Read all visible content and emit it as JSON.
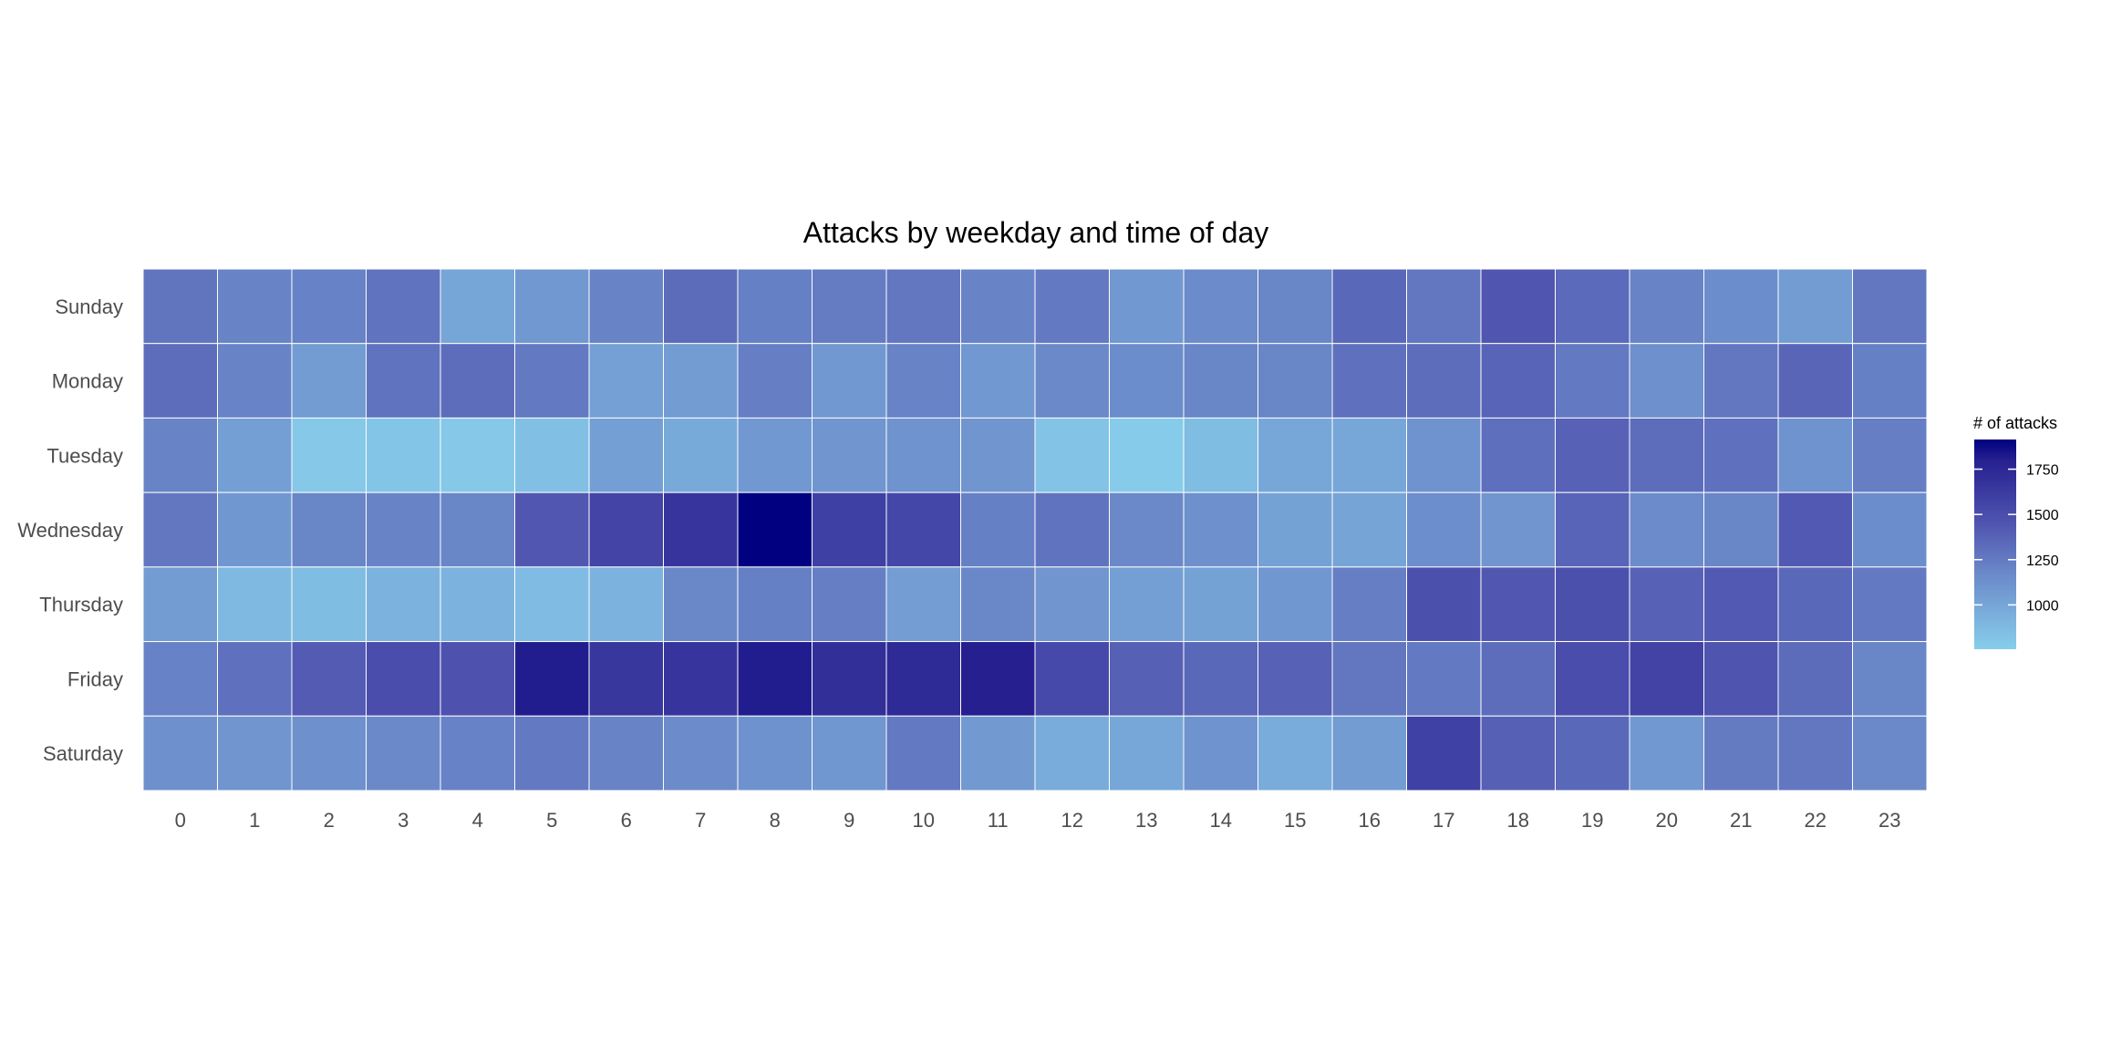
{
  "chart_data": {
    "type": "heatmap",
    "title": "Attacks by weekday and time of day",
    "xlabel": "",
    "ylabel": "",
    "x": [
      "0",
      "1",
      "2",
      "3",
      "4",
      "5",
      "6",
      "7",
      "8",
      "9",
      "10",
      "11",
      "12",
      "13",
      "14",
      "15",
      "16",
      "17",
      "18",
      "19",
      "20",
      "21",
      "22",
      "23"
    ],
    "y": [
      "Sunday",
      "Monday",
      "Tuesday",
      "Wednesday",
      "Thursday",
      "Friday",
      "Saturday"
    ],
    "values": [
      [
        1280,
        1200,
        1210,
        1290,
        1000,
        1080,
        1200,
        1330,
        1220,
        1240,
        1270,
        1200,
        1260,
        1080,
        1160,
        1190,
        1350,
        1270,
        1450,
        1340,
        1200,
        1150,
        1060,
        1270
      ],
      [
        1320,
        1200,
        1060,
        1290,
        1320,
        1260,
        1030,
        1060,
        1230,
        1080,
        1200,
        1080,
        1170,
        1150,
        1190,
        1190,
        1300,
        1320,
        1370,
        1260,
        1130,
        1270,
        1360,
        1220
      ],
      [
        1200,
        1040,
        790,
        810,
        790,
        840,
        1040,
        970,
        1080,
        1100,
        1110,
        1100,
        820,
        770,
        860,
        990,
        990,
        1110,
        1310,
        1380,
        1320,
        1300,
        1110,
        1230
      ],
      [
        1270,
        1090,
        1190,
        1200,
        1190,
        1440,
        1560,
        1660,
        1914,
        1590,
        1540,
        1220,
        1290,
        1170,
        1130,
        1020,
        1010,
        1140,
        1100,
        1370,
        1160,
        1190,
        1430,
        1150
      ],
      [
        1060,
        880,
        860,
        920,
        920,
        870,
        920,
        1180,
        1220,
        1230,
        1050,
        1180,
        1100,
        1040,
        1020,
        1090,
        1230,
        1480,
        1440,
        1480,
        1380,
        1430,
        1350,
        1260
      ],
      [
        1210,
        1300,
        1420,
        1500,
        1470,
        1810,
        1650,
        1660,
        1810,
        1700,
        1730,
        1800,
        1530,
        1390,
        1350,
        1380,
        1270,
        1260,
        1320,
        1500,
        1570,
        1460,
        1330,
        1190
      ],
      [
        1130,
        1100,
        1130,
        1170,
        1210,
        1260,
        1200,
        1160,
        1120,
        1090,
        1260,
        1070,
        960,
        990,
        1110,
        960,
        1060,
        1580,
        1390,
        1350,
        1080,
        1250,
        1270,
        1170
      ]
    ],
    "color_range": [
      755,
      1914
    ],
    "colors": {
      "low": "#87CEEB",
      "high": "#000080"
    },
    "legend": {
      "title": "# of attacks",
      "ticks": [
        1000,
        1250,
        1500,
        1750
      ],
      "tick_labels": [
        "1000",
        "1250",
        "1500",
        "1750"
      ],
      "placement": "right"
    },
    "grid": false
  }
}
